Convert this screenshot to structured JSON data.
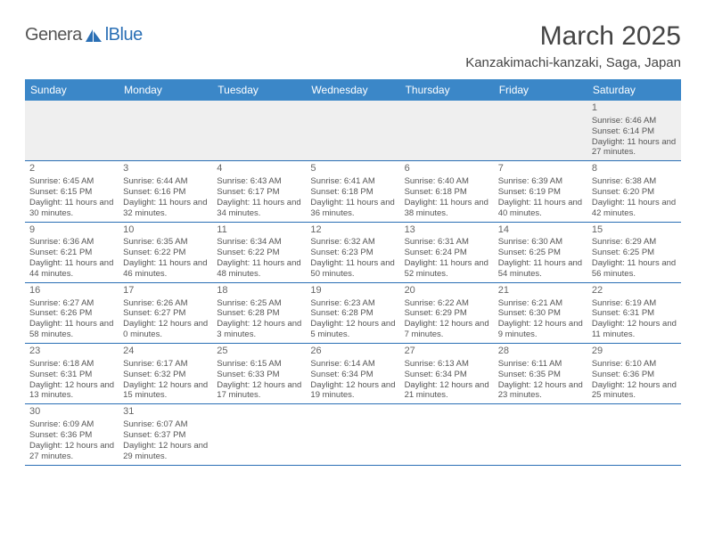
{
  "logo": {
    "part1": "Genera",
    "part2": "lBlue"
  },
  "title": "March 2025",
  "subtitle": "Kanzakimachi-kanzaki, Saga, Japan",
  "colors": {
    "header_bg": "#3b87c8",
    "header_text": "#ffffff",
    "rule": "#2a6fb5",
    "body_text": "#555555",
    "title_text": "#444444",
    "logo_gray": "#555555",
    "logo_blue": "#2a6fb5",
    "empty_row_bg": "#efefef"
  },
  "day_headers": [
    "Sunday",
    "Monday",
    "Tuesday",
    "Wednesday",
    "Thursday",
    "Friday",
    "Saturday"
  ],
  "weeks": [
    [
      null,
      null,
      null,
      null,
      null,
      null,
      {
        "n": "1",
        "sunrise": "Sunrise: 6:46 AM",
        "sunset": "Sunset: 6:14 PM",
        "daylight": "Daylight: 11 hours and 27 minutes."
      }
    ],
    [
      {
        "n": "2",
        "sunrise": "Sunrise: 6:45 AM",
        "sunset": "Sunset: 6:15 PM",
        "daylight": "Daylight: 11 hours and 30 minutes."
      },
      {
        "n": "3",
        "sunrise": "Sunrise: 6:44 AM",
        "sunset": "Sunset: 6:16 PM",
        "daylight": "Daylight: 11 hours and 32 minutes."
      },
      {
        "n": "4",
        "sunrise": "Sunrise: 6:43 AM",
        "sunset": "Sunset: 6:17 PM",
        "daylight": "Daylight: 11 hours and 34 minutes."
      },
      {
        "n": "5",
        "sunrise": "Sunrise: 6:41 AM",
        "sunset": "Sunset: 6:18 PM",
        "daylight": "Daylight: 11 hours and 36 minutes."
      },
      {
        "n": "6",
        "sunrise": "Sunrise: 6:40 AM",
        "sunset": "Sunset: 6:18 PM",
        "daylight": "Daylight: 11 hours and 38 minutes."
      },
      {
        "n": "7",
        "sunrise": "Sunrise: 6:39 AM",
        "sunset": "Sunset: 6:19 PM",
        "daylight": "Daylight: 11 hours and 40 minutes."
      },
      {
        "n": "8",
        "sunrise": "Sunrise: 6:38 AM",
        "sunset": "Sunset: 6:20 PM",
        "daylight": "Daylight: 11 hours and 42 minutes."
      }
    ],
    [
      {
        "n": "9",
        "sunrise": "Sunrise: 6:36 AM",
        "sunset": "Sunset: 6:21 PM",
        "daylight": "Daylight: 11 hours and 44 minutes."
      },
      {
        "n": "10",
        "sunrise": "Sunrise: 6:35 AM",
        "sunset": "Sunset: 6:22 PM",
        "daylight": "Daylight: 11 hours and 46 minutes."
      },
      {
        "n": "11",
        "sunrise": "Sunrise: 6:34 AM",
        "sunset": "Sunset: 6:22 PM",
        "daylight": "Daylight: 11 hours and 48 minutes."
      },
      {
        "n": "12",
        "sunrise": "Sunrise: 6:32 AM",
        "sunset": "Sunset: 6:23 PM",
        "daylight": "Daylight: 11 hours and 50 minutes."
      },
      {
        "n": "13",
        "sunrise": "Sunrise: 6:31 AM",
        "sunset": "Sunset: 6:24 PM",
        "daylight": "Daylight: 11 hours and 52 minutes."
      },
      {
        "n": "14",
        "sunrise": "Sunrise: 6:30 AM",
        "sunset": "Sunset: 6:25 PM",
        "daylight": "Daylight: 11 hours and 54 minutes."
      },
      {
        "n": "15",
        "sunrise": "Sunrise: 6:29 AM",
        "sunset": "Sunset: 6:25 PM",
        "daylight": "Daylight: 11 hours and 56 minutes."
      }
    ],
    [
      {
        "n": "16",
        "sunrise": "Sunrise: 6:27 AM",
        "sunset": "Sunset: 6:26 PM",
        "daylight": "Daylight: 11 hours and 58 minutes."
      },
      {
        "n": "17",
        "sunrise": "Sunrise: 6:26 AM",
        "sunset": "Sunset: 6:27 PM",
        "daylight": "Daylight: 12 hours and 0 minutes."
      },
      {
        "n": "18",
        "sunrise": "Sunrise: 6:25 AM",
        "sunset": "Sunset: 6:28 PM",
        "daylight": "Daylight: 12 hours and 3 minutes."
      },
      {
        "n": "19",
        "sunrise": "Sunrise: 6:23 AM",
        "sunset": "Sunset: 6:28 PM",
        "daylight": "Daylight: 12 hours and 5 minutes."
      },
      {
        "n": "20",
        "sunrise": "Sunrise: 6:22 AM",
        "sunset": "Sunset: 6:29 PM",
        "daylight": "Daylight: 12 hours and 7 minutes."
      },
      {
        "n": "21",
        "sunrise": "Sunrise: 6:21 AM",
        "sunset": "Sunset: 6:30 PM",
        "daylight": "Daylight: 12 hours and 9 minutes."
      },
      {
        "n": "22",
        "sunrise": "Sunrise: 6:19 AM",
        "sunset": "Sunset: 6:31 PM",
        "daylight": "Daylight: 12 hours and 11 minutes."
      }
    ],
    [
      {
        "n": "23",
        "sunrise": "Sunrise: 6:18 AM",
        "sunset": "Sunset: 6:31 PM",
        "daylight": "Daylight: 12 hours and 13 minutes."
      },
      {
        "n": "24",
        "sunrise": "Sunrise: 6:17 AM",
        "sunset": "Sunset: 6:32 PM",
        "daylight": "Daylight: 12 hours and 15 minutes."
      },
      {
        "n": "25",
        "sunrise": "Sunrise: 6:15 AM",
        "sunset": "Sunset: 6:33 PM",
        "daylight": "Daylight: 12 hours and 17 minutes."
      },
      {
        "n": "26",
        "sunrise": "Sunrise: 6:14 AM",
        "sunset": "Sunset: 6:34 PM",
        "daylight": "Daylight: 12 hours and 19 minutes."
      },
      {
        "n": "27",
        "sunrise": "Sunrise: 6:13 AM",
        "sunset": "Sunset: 6:34 PM",
        "daylight": "Daylight: 12 hours and 21 minutes."
      },
      {
        "n": "28",
        "sunrise": "Sunrise: 6:11 AM",
        "sunset": "Sunset: 6:35 PM",
        "daylight": "Daylight: 12 hours and 23 minutes."
      },
      {
        "n": "29",
        "sunrise": "Sunrise: 6:10 AM",
        "sunset": "Sunset: 6:36 PM",
        "daylight": "Daylight: 12 hours and 25 minutes."
      }
    ],
    [
      {
        "n": "30",
        "sunrise": "Sunrise: 6:09 AM",
        "sunset": "Sunset: 6:36 PM",
        "daylight": "Daylight: 12 hours and 27 minutes."
      },
      {
        "n": "31",
        "sunrise": "Sunrise: 6:07 AM",
        "sunset": "Sunset: 6:37 PM",
        "daylight": "Daylight: 12 hours and 29 minutes."
      },
      null,
      null,
      null,
      null,
      null
    ]
  ]
}
